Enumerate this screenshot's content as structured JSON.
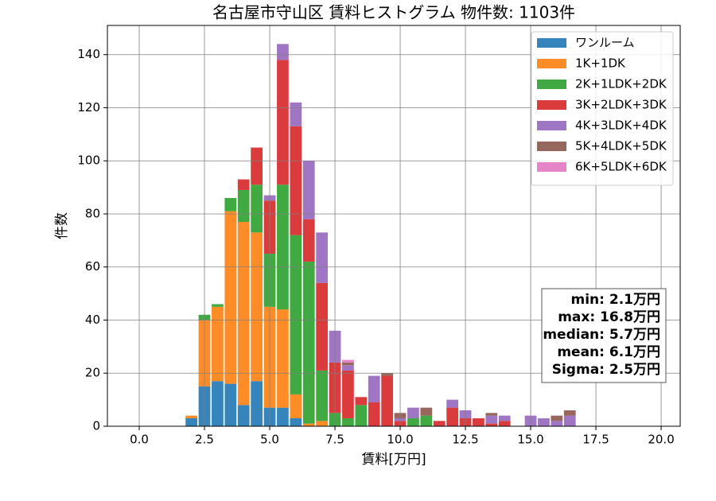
{
  "chart_data": {
    "type": "histogram",
    "title": "名古屋市守山区 賃料ヒストグラム 物件数: 1103件",
    "x_label": "賃料[万円]",
    "y_label": "件数",
    "bins": [
      1.75,
      2.25,
      2.75,
      3.25,
      3.75,
      4.25,
      4.75,
      5.25,
      5.75,
      6.25,
      6.75,
      7.25,
      7.75,
      8.25,
      8.75,
      9.25,
      9.75,
      10.25,
      10.75,
      11.25,
      11.75,
      12.25,
      12.75,
      13.25,
      13.75,
      14.25,
      14.75,
      15.25,
      15.75,
      16.25,
      16.75
    ],
    "stacked": true,
    "series": [
      {
        "name": "ワンルーム",
        "color": "#1f77b4",
        "values": [
          3,
          15,
          17,
          16,
          8,
          17,
          7,
          7,
          3,
          0,
          0,
          0,
          0,
          0,
          0,
          0,
          0,
          0,
          0,
          0,
          0,
          0,
          0,
          0,
          0,
          0,
          0,
          0,
          0,
          0
        ]
      },
      {
        "name": "1K+1DK",
        "color": "#ff7f0e",
        "values": [
          1,
          25,
          28,
          65,
          69,
          56,
          38,
          37,
          9,
          1,
          2,
          0,
          0,
          0,
          0,
          0,
          0,
          0,
          0,
          0,
          0,
          0,
          0,
          0,
          0,
          0,
          0,
          0,
          0,
          0
        ]
      },
      {
        "name": "2K+1LDK+2DK",
        "color": "#2ca02c",
        "values": [
          0,
          2,
          1,
          5,
          12,
          18,
          20,
          47,
          60,
          61,
          19,
          5,
          3,
          8,
          0,
          0,
          0,
          3,
          4,
          0,
          0,
          0,
          0,
          0,
          0,
          0,
          0,
          0,
          0,
          0
        ]
      },
      {
        "name": "3K+2LDK+3DK",
        "color": "#d62728",
        "values": [
          0,
          0,
          0,
          0,
          4,
          14,
          20,
          47,
          41,
          16,
          33,
          19,
          18,
          3,
          9,
          19,
          2,
          0,
          0,
          2,
          7,
          3,
          3,
          1,
          2,
          0,
          0,
          0,
          0,
          0
        ]
      },
      {
        "name": "4K+3LDK+4DK",
        "color": "#9467bd",
        "values": [
          0,
          0,
          0,
          0,
          0,
          0,
          2,
          6,
          9,
          22,
          19,
          12,
          2,
          0,
          10,
          0,
          1,
          4,
          0,
          0,
          3,
          3,
          0,
          3,
          2,
          0,
          4,
          3,
          2,
          4
        ]
      },
      {
        "name": "5K+4LDK+5DK",
        "color": "#8c564b",
        "values": [
          0,
          0,
          0,
          0,
          0,
          0,
          0,
          0,
          0,
          0,
          0,
          0,
          1,
          0,
          0,
          1,
          2,
          0,
          3,
          0,
          0,
          0,
          0,
          1,
          0,
          0,
          0,
          0,
          2,
          2
        ]
      },
      {
        "name": "6K+5LDK+6DK",
        "color": "#e377c2",
        "values": [
          0,
          0,
          0,
          0,
          0,
          0,
          0,
          0,
          0,
          0,
          0,
          0,
          1,
          0,
          0,
          0,
          0,
          0,
          0,
          0,
          0,
          0,
          0,
          0,
          0,
          0,
          0,
          0,
          0,
          0
        ]
      }
    ],
    "xlim": [
      -1.22,
      20.73
    ],
    "ylim": [
      0,
      151
    ],
    "xticks": [
      {
        "value": 0,
        "label": "0.0"
      },
      2.5,
      {
        "value": 5,
        "label": "5.0"
      },
      7.5,
      {
        "value": 10,
        "label": "10.0"
      },
      12.5,
      {
        "value": 15,
        "label": "15.0"
      },
      17.5,
      {
        "value": 20,
        "label": "20.0"
      }
    ],
    "yticks": [
      0,
      20,
      40,
      60,
      80,
      100,
      120,
      140
    ],
    "grid": true,
    "legend": "upper right",
    "stats": [
      "min: 2.1万円",
      "max: 16.8万円",
      "median: 5.7万円",
      "mean: 6.1万円",
      "Sigma: 2.5万円"
    ]
  }
}
